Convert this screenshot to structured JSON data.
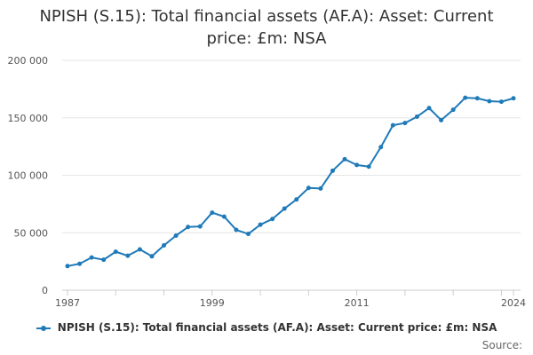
{
  "chart_data": {
    "type": "line",
    "title": "NPISH (S.15): Total financial assets (AF.A): Asset: Current price: £m: NSA",
    "xlabel": "",
    "ylabel": "",
    "x": [
      1987,
      1988,
      1989,
      1990,
      1991,
      1992,
      1993,
      1994,
      1995,
      1996,
      1997,
      1998,
      1999,
      2000,
      2001,
      2002,
      2003,
      2004,
      2005,
      2006,
      2007,
      2008,
      2009,
      2010,
      2011,
      2012,
      2013,
      2014,
      2015,
      2016,
      2017,
      2018,
      2019,
      2020,
      2021,
      2022,
      2023,
      2024
    ],
    "series": [
      {
        "name": "NPISH (S.15): Total financial assets (AF.A): Asset: Current price: £m: NSA",
        "color": "#1f7ab8",
        "values": [
          21000,
          23000,
          28500,
          26500,
          33500,
          30000,
          35500,
          29500,
          39000,
          47500,
          55000,
          55500,
          67500,
          64000,
          52500,
          49000,
          57000,
          62000,
          71000,
          79000,
          89000,
          88500,
          104000,
          114000,
          109000,
          107500,
          124500,
          143500,
          145500,
          151000,
          158500,
          148000,
          157000,
          167500,
          167000,
          164500,
          164000,
          167000
        ]
      }
    ],
    "ylim": [
      0,
      200000
    ],
    "yticks": [
      0,
      50000,
      100000,
      150000,
      200000
    ],
    "ytick_labels": [
      "0",
      "50 000",
      "100 000",
      "150 000",
      "200 000"
    ],
    "xticks": [
      1987,
      1999,
      2011,
      2024
    ],
    "xtick_labels": [
      "1987",
      "1999",
      "2011",
      "2024"
    ],
    "grid": true,
    "legend": "bottom-center",
    "source_label": "Source:"
  }
}
